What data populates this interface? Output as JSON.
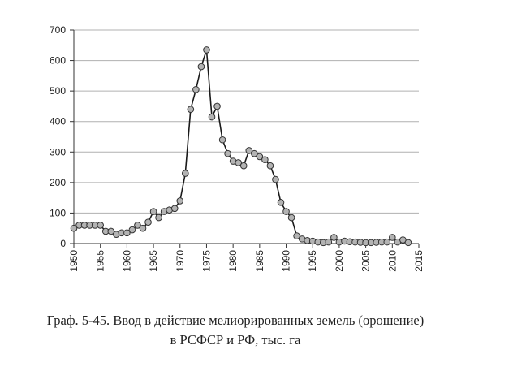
{
  "caption": {
    "line1": "Граф. 5-45. Ввод в действие мелиорированных земель (орошение)",
    "line2": "в РСФСР и РФ, тыс. га"
  },
  "colors": {
    "line": "#1a1a1a",
    "marker_fill": "#b3b3b3",
    "marker_stroke": "#333333",
    "grid": "#b0b0b0",
    "axis": "#333333"
  },
  "chart_data": {
    "type": "line",
    "title": "",
    "xlabel": "",
    "ylabel": "",
    "xlim": [
      1950,
      2015
    ],
    "ylim": [
      0,
      700
    ],
    "xticks": [
      1950,
      1955,
      1960,
      1965,
      1970,
      1975,
      1980,
      1985,
      1990,
      1995,
      2000,
      2005,
      2010,
      2015
    ],
    "yticks": [
      0,
      100,
      200,
      300,
      400,
      500,
      600,
      700
    ],
    "grid": "horizontal",
    "legend": "none",
    "series": [
      {
        "x": [
          1950,
          1951,
          1952,
          1953,
          1954,
          1955,
          1956,
          1957,
          1958,
          1959,
          1960,
          1961,
          1962,
          1963,
          1964,
          1965,
          1966,
          1967,
          1968,
          1969,
          1970,
          1971,
          1972,
          1973,
          1974,
          1975,
          1976,
          1977,
          1978,
          1979,
          1980,
          1981,
          1982,
          1983,
          1984,
          1985,
          1986,
          1987,
          1988,
          1989,
          1990,
          1991,
          1992,
          1993,
          1994,
          1995,
          1996,
          1997,
          1998,
          1999,
          2000,
          2001,
          2002,
          2003,
          2004,
          2005,
          2006,
          2007,
          2008,
          2009,
          2010,
          2011,
          2012,
          2013
        ],
        "y": [
          50,
          60,
          60,
          60,
          60,
          60,
          40,
          40,
          30,
          35,
          35,
          45,
          60,
          50,
          70,
          105,
          85,
          105,
          110,
          115,
          140,
          230,
          440,
          505,
          580,
          635,
          415,
          450,
          340,
          295,
          270,
          265,
          255,
          305,
          295,
          285,
          275,
          255,
          210,
          135,
          105,
          85,
          25,
          15,
          10,
          8,
          5,
          3,
          5,
          20,
          5,
          8,
          6,
          5,
          4,
          3,
          3,
          4,
          5,
          5,
          20,
          5,
          12,
          3
        ]
      }
    ]
  }
}
